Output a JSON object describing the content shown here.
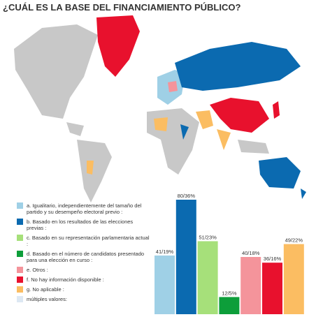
{
  "chart_data": {
    "type": "bar",
    "title": "¿CUÁL ES LA BASE DEL FINANCIAMIENTO PÚBLICO?",
    "categories": [
      "a. Igualitario, independientemente del tamaño del partido y su desempeño electoral previo :",
      "b. Basado en los resultados de las elecciones previas :",
      "c. Basado en su representación parlamentaria actual :",
      "d. Basado en el número de candidatos presentado para una elección en curso :",
      "e. Otros :",
      "f. No hay información disponible :",
      "g. No aplicable :",
      "múltiples valores:"
    ],
    "values": [
      41,
      80,
      51,
      12,
      40,
      36,
      49,
      null
    ],
    "value_labels": [
      "41/19%",
      "80/36%",
      "51/23%",
      "12/5%",
      "40/18%",
      "36/16%",
      "49/22%",
      null
    ],
    "colors": [
      "#9fd0e6",
      "#0b6ab0",
      "#a6e07a",
      "#0d9e3a",
      "#f4949b",
      "#e8112d",
      "#fbbd62",
      "#dde8f3"
    ]
  }
}
